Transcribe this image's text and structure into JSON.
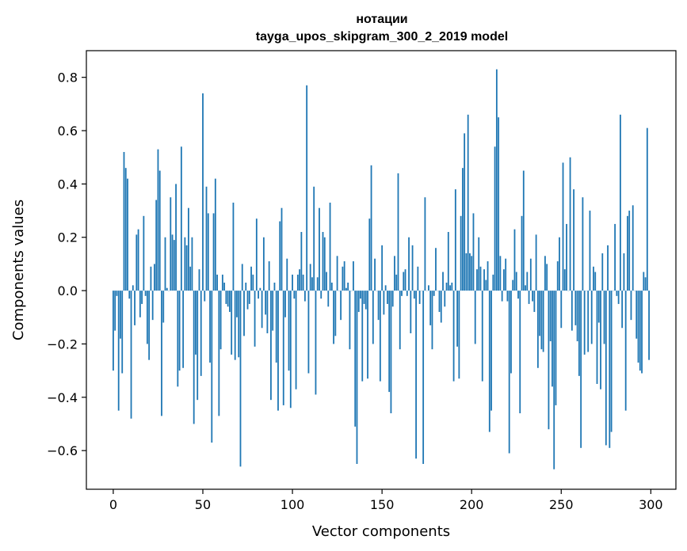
{
  "chart_data": {
    "type": "bar",
    "title_line1": "нотации",
    "title_line2": "tayga_upos_skipgram_300_2_2019 model",
    "xlabel": "Vector components",
    "ylabel": "Components values",
    "xlim": [
      -15,
      314
    ],
    "ylim": [
      -0.745,
      0.9
    ],
    "xticks": [
      0,
      50,
      100,
      150,
      200,
      250,
      300
    ],
    "xtick_labels": [
      "0",
      "50",
      "100",
      "150",
      "200",
      "250",
      "300"
    ],
    "yticks": [
      -0.6,
      -0.4,
      -0.2,
      0.0,
      0.2,
      0.4,
      0.6,
      0.8
    ],
    "ytick_labels": [
      "−0.6",
      "−0.4",
      "−0.2",
      "0.0",
      "0.2",
      "0.4",
      "0.6",
      "0.8"
    ],
    "bar_color": "#1f77b4",
    "grid": false,
    "values": [
      -0.3,
      -0.15,
      -0.02,
      -0.45,
      -0.18,
      -0.31,
      0.52,
      0.46,
      0.42,
      -0.03,
      -0.48,
      0.02,
      -0.13,
      0.21,
      0.23,
      -0.1,
      -0.05,
      0.28,
      -0.02,
      -0.2,
      -0.26,
      0.09,
      -0.11,
      0.1,
      0.34,
      0.53,
      0.45,
      -0.47,
      -0.12,
      0.2,
      0.01,
      0.0,
      0.35,
      0.21,
      0.19,
      0.4,
      -0.36,
      -0.3,
      0.54,
      -0.29,
      0.2,
      0.17,
      0.31,
      0.09,
      0.2,
      -0.5,
      -0.24,
      -0.41,
      0.08,
      -0.32,
      0.74,
      -0.04,
      0.39,
      0.29,
      -0.27,
      -0.57,
      0.29,
      0.42,
      0.06,
      -0.47,
      -0.22,
      0.06,
      0.03,
      -0.05,
      -0.06,
      -0.08,
      -0.24,
      0.33,
      -0.26,
      -0.1,
      -0.25,
      -0.66,
      0.1,
      -0.17,
      0.03,
      -0.07,
      -0.05,
      0.09,
      0.06,
      -0.21,
      0.27,
      -0.03,
      0.01,
      -0.14,
      0.2,
      -0.09,
      -0.16,
      0.11,
      -0.41,
      -0.15,
      0.03,
      -0.27,
      -0.45,
      0.26,
      0.31,
      -0.43,
      -0.1,
      0.12,
      -0.3,
      -0.44,
      0.06,
      -0.03,
      -0.37,
      0.06,
      0.08,
      0.22,
      0.06,
      -0.04,
      0.77,
      -0.31,
      0.1,
      0.05,
      0.39,
      -0.39,
      0.05,
      0.31,
      -0.03,
      0.22,
      0.2,
      0.07,
      -0.06,
      0.33,
      0.03,
      -0.2,
      -0.17,
      0.13,
      0.0,
      -0.11,
      0.09,
      0.11,
      0.01,
      0.03,
      -0.22,
      0.0,
      0.11,
      -0.51,
      -0.65,
      -0.08,
      -0.03,
      -0.34,
      -0.05,
      -0.07,
      -0.33,
      0.27,
      0.47,
      -0.2,
      0.12,
      0.0,
      -0.11,
      -0.34,
      0.17,
      -0.09,
      0.02,
      -0.05,
      -0.38,
      -0.46,
      -0.06,
      0.13,
      0.06,
      0.44,
      -0.22,
      -0.02,
      0.07,
      0.08,
      -0.02,
      0.2,
      -0.16,
      0.17,
      -0.03,
      -0.63,
      0.09,
      -0.05,
      0.0,
      -0.65,
      0.35,
      0.0,
      0.02,
      -0.13,
      -0.22,
      -0.02,
      0.16,
      0.0,
      -0.08,
      -0.12,
      0.07,
      -0.06,
      0.03,
      0.22,
      0.02,
      0.03,
      -0.34,
      0.38,
      -0.21,
      -0.33,
      0.28,
      0.46,
      0.59,
      0.14,
      0.66,
      0.14,
      0.13,
      0.29,
      -0.2,
      0.08,
      0.2,
      0.09,
      -0.34,
      0.08,
      0.04,
      0.11,
      -0.53,
      -0.45,
      0.06,
      0.54,
      0.83,
      0.65,
      0.13,
      -0.04,
      0.08,
      0.12,
      -0.04,
      -0.61,
      -0.31,
      0.04,
      0.23,
      0.07,
      -0.03,
      -0.46,
      0.28,
      0.45,
      0.02,
      0.07,
      -0.05,
      0.12,
      -0.04,
      -0.08,
      0.21,
      -0.29,
      -0.17,
      -0.22,
      -0.23,
      0.13,
      0.1,
      -0.52,
      -0.19,
      -0.36,
      -0.67,
      -0.43,
      0.11,
      0.2,
      -0.14,
      0.48,
      0.08,
      0.25,
      0.0,
      0.5,
      -0.15,
      0.38,
      -0.13,
      -0.19,
      -0.32,
      -0.59,
      0.35,
      -0.24,
      0.0,
      -0.23,
      0.3,
      -0.2,
      0.09,
      0.07,
      -0.35,
      -0.12,
      -0.37,
      0.14,
      -0.2,
      -0.58,
      0.17,
      -0.59,
      -0.53,
      0.0,
      0.25,
      -0.02,
      -0.05,
      0.66,
      -0.14,
      0.14,
      -0.45,
      0.28,
      0.3,
      -0.11,
      0.32,
      0.0,
      -0.18,
      -0.27,
      -0.3,
      -0.31,
      0.07,
      0.05,
      0.61,
      -0.26
    ]
  }
}
